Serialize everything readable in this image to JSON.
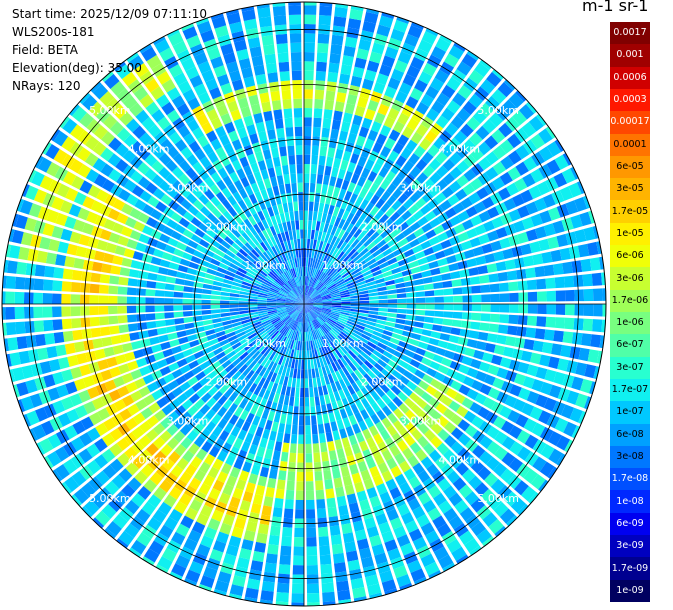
{
  "header": {
    "start_time": "Start time: 2025/12/09 07:11:10",
    "instrument": "WLS200s-181",
    "field": "Field: BETA",
    "elevation": "Elevation(deg): 35.00",
    "nrays": "NRays: 120"
  },
  "colorbar": {
    "unit_label": "m-1 sr-1",
    "labels": [
      "0.0017",
      "0.001",
      "0.0006",
      "0.0003",
      "0.00017",
      "0.0001",
      "6e-05",
      "3e-05",
      "1.7e-05",
      "1e-05",
      "6e-06",
      "3e-06",
      "1.7e-06",
      "1e-06",
      "6e-07",
      "3e-07",
      "1.7e-07",
      "1e-07",
      "6e-08",
      "3e-08",
      "1.7e-08",
      "1e-08",
      "6e-09",
      "3e-09",
      "1.7e-09",
      "1e-09"
    ],
    "colors": [
      "#800000",
      "#a00000",
      "#d00000",
      "#ff1800",
      "#ff4800",
      "#ff7400",
      "#ff9800",
      "#ffb400",
      "#ffd000",
      "#fff000",
      "#f0ff08",
      "#c8ff30",
      "#a0ff58",
      "#78ff80",
      "#50ffa8",
      "#28ffd0",
      "#10f0f0",
      "#00c8ff",
      "#00a0ff",
      "#0078ff",
      "#0050ff",
      "#0028ff",
      "#0000f0",
      "#0000c0",
      "#000090",
      "#000060"
    ]
  },
  "chart_data": {
    "type": "heatmap",
    "projection": "polar PPI scan",
    "field": "BETA",
    "nrays": 120,
    "elevation_deg": 35.0,
    "range_rings_km": [
      1.0,
      2.0,
      3.0,
      4.0,
      5.0
    ],
    "range_ring_labels": [
      "1.00km",
      "2.00km",
      "3.00km",
      "4.00km",
      "5.00km"
    ],
    "max_range_km": 5.5,
    "grid": true,
    "colorscale": "jet, log scale",
    "value_range": [
      1e-09,
      0.0017
    ],
    "features": [
      {
        "region": "near range (0-2 km)",
        "typical_value": 3e-08
      },
      {
        "region": "ring ~3.3-4.3 km, west and south-west sectors",
        "typical_value": 1e-05
      },
      {
        "region": "north-east ring ~3.5 km",
        "typical_value": 3e-06
      },
      {
        "region": "far range background",
        "typical_value": 1e-07
      }
    ]
  }
}
